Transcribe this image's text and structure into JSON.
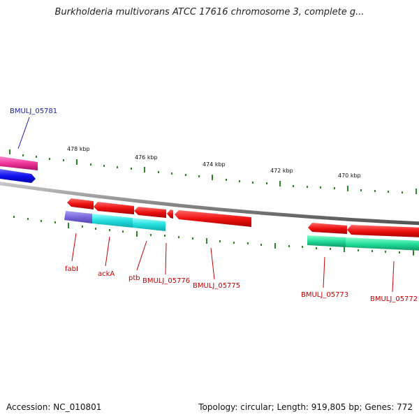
{
  "title": "Burkholderia multivorans ATCC 17616 chromosome 3, complete g...",
  "ruler_labels": [
    "478 kbp",
    "476 kbp",
    "474 kbp",
    "472 kbp",
    "470 kbp"
  ],
  "gene_labels": {
    "bmulj_05781": "BMULJ_05781",
    "fabi": "fabI",
    "acka": "ackA",
    "ptb": "ptb",
    "bmulj_05776": "BMULJ_05776",
    "bmulj_05775": "BMULJ_05775",
    "bmulj_05773": "BMULJ_05773",
    "bmulj_05772": "BMULJ_05772"
  },
  "footer": {
    "accession": "Accession: NC_010801",
    "topology": "Topology: circular; Length: 919,805 bp; Genes: 772"
  },
  "colors": {
    "backbone": "#8a8a8a",
    "feature_red": "#ee1111",
    "feature_pink": "#ee3399",
    "feature_blue": "#1111ee",
    "feature_purple": "#7766dd",
    "feature_cyan": "#22dddd",
    "feature_green": "#22dd99",
    "tick_green": "#2a8a2a",
    "label_red": "#cc0000",
    "label_blue": "#1a1aaa"
  }
}
